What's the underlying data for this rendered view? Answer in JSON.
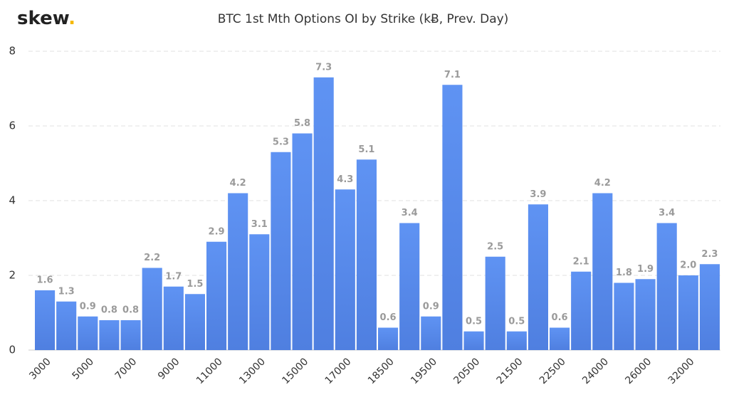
{
  "brand": "skew",
  "brand_dot": ".",
  "chart_data": {
    "type": "bar",
    "title": "BTC 1st Mth Options OI by Strike (kɃ, Prev. Day)",
    "categories": [
      "3000",
      null,
      "5000",
      null,
      "7000",
      null,
      "9000",
      null,
      "11000",
      null,
      "13000",
      null,
      "15000",
      null,
      "17000",
      null,
      "18500",
      null,
      "19500",
      null,
      "20500",
      null,
      "21500",
      null,
      "22500",
      null,
      "24000",
      null,
      "26000",
      null,
      "32000",
      null
    ],
    "values": [
      1.6,
      1.3,
      0.9,
      0.8,
      0.8,
      2.2,
      1.7,
      1.5,
      2.9,
      4.2,
      3.1,
      5.3,
      5.8,
      7.3,
      4.3,
      5.1,
      0.6,
      3.4,
      0.9,
      7.1,
      0.5,
      2.5,
      0.5,
      3.9,
      0.6,
      2.1,
      4.2,
      1.8,
      1.9,
      3.4,
      2.0,
      2.3
    ],
    "value_labels": [
      "1.6",
      "1.3",
      "0.9",
      "0.8",
      "0.8",
      "2.2",
      "1.7",
      "1.5",
      "2.9",
      "4.2",
      "3.1",
      "5.3",
      "5.8",
      "7.3",
      "4.3",
      "5.1",
      "0.6",
      "3.4",
      "0.9",
      "7.1",
      "0.5",
      "2.5",
      "0.5",
      "3.9",
      "0.6",
      "2.1",
      "4.2",
      "1.8",
      "1.9",
      "3.4",
      "2.0",
      "2.3"
    ],
    "color": "#5b8def",
    "ylim": [
      0,
      8
    ],
    "yticks": [
      0,
      2,
      4,
      6,
      8
    ],
    "grid": true
  }
}
